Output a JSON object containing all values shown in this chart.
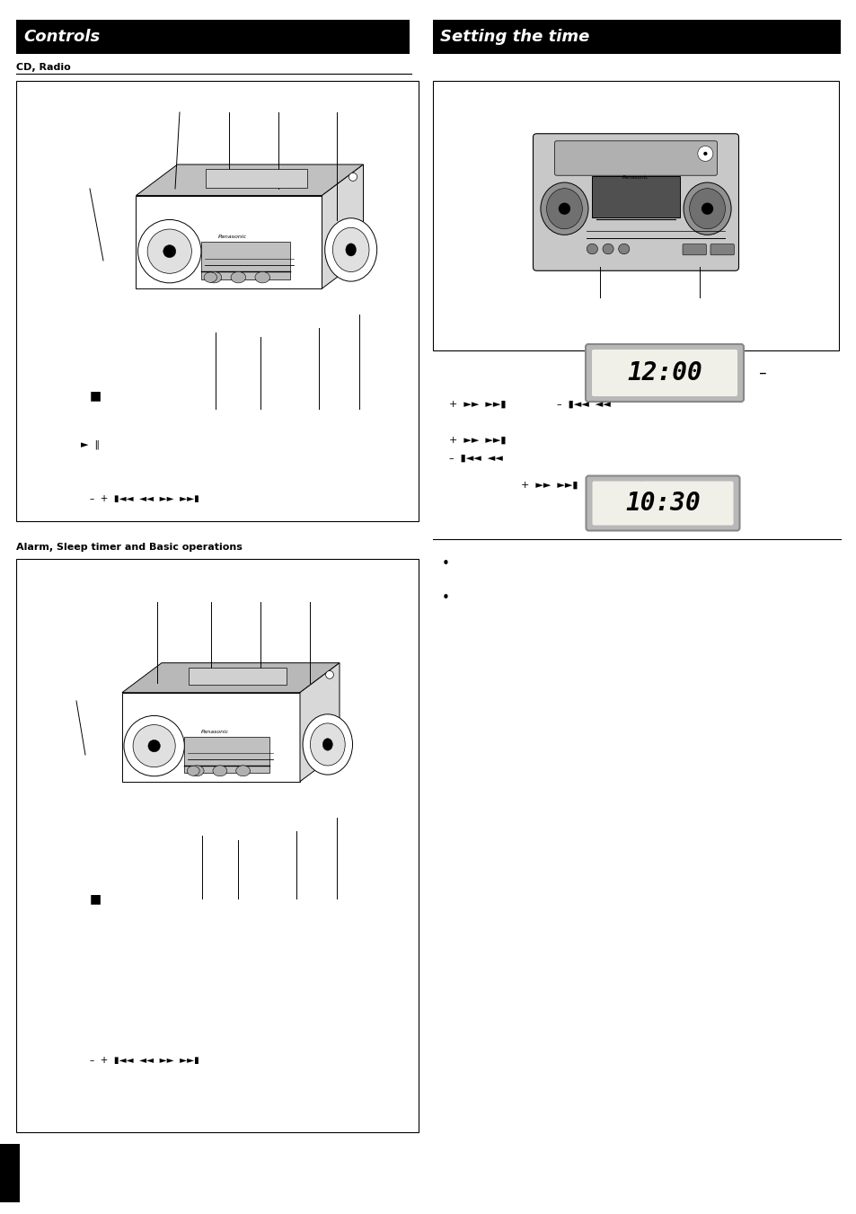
{
  "page_width": 9.54,
  "page_height": 13.51,
  "dpi": 100,
  "bg": "#ffffff",
  "header_bg": "#000000",
  "header_fg": "#ffffff",
  "controls_header": "Controls",
  "setting_header": "Setting the time",
  "header_fs": 13,
  "cd_radio_label": "CD, Radio",
  "alarm_label": "Alarm, Sleep timer and Basic operations",
  "clock1_text": "12:00",
  "clock2_text": "10:30",
  "gray_device": "#c8c8c8",
  "light_gray": "#e0e0e0",
  "mid_gray": "#a0a0a0",
  "dark_gray": "#606060"
}
